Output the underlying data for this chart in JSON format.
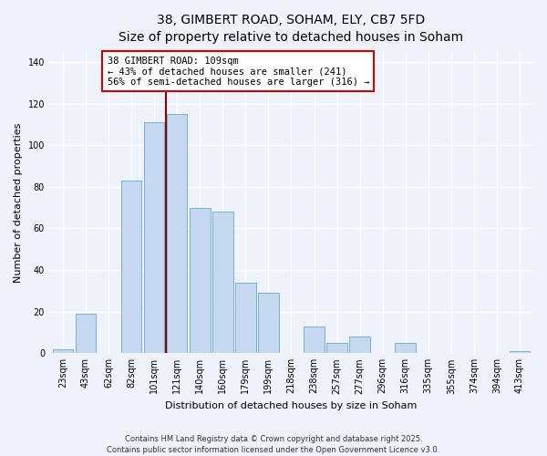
{
  "title_line1": "38, GIMBERT ROAD, SOHAM, ELY, CB7 5FD",
  "title_line2": "Size of property relative to detached houses in Soham",
  "xlabel": "Distribution of detached houses by size in Soham",
  "ylabel": "Number of detached properties",
  "categories": [
    "23sqm",
    "43sqm",
    "62sqm",
    "82sqm",
    "101sqm",
    "121sqm",
    "140sqm",
    "160sqm",
    "179sqm",
    "199sqm",
    "218sqm",
    "238sqm",
    "257sqm",
    "277sqm",
    "296sqm",
    "316sqm",
    "335sqm",
    "355sqm",
    "374sqm",
    "394sqm",
    "413sqm"
  ],
  "values": [
    2,
    19,
    0,
    83,
    111,
    115,
    70,
    68,
    34,
    29,
    0,
    13,
    5,
    8,
    0,
    5,
    0,
    0,
    0,
    0,
    1
  ],
  "bar_color": "#c5d8f0",
  "bar_edge_color": "#7aafd4",
  "marker_line_color": "#8b0000",
  "annotation_line1": "38 GIMBERT ROAD: 109sqm",
  "annotation_line2": "← 43% of detached houses are smaller (241)",
  "annotation_line3": "56% of semi-detached houses are larger (316) →",
  "annotation_box_facecolor": "#ffffff",
  "annotation_box_edgecolor": "#cc0000",
  "ylim": [
    0,
    145
  ],
  "yticks": [
    0,
    20,
    40,
    60,
    80,
    100,
    120,
    140
  ],
  "footer_line1": "Contains HM Land Registry data © Crown copyright and database right 2025.",
  "footer_line2": "Contains public sector information licensed under the Open Government Licence v3.0.",
  "background_color": "#eef2fb",
  "grid_color": "#ffffff",
  "title_fontsize": 10,
  "subtitle_fontsize": 9,
  "axis_label_fontsize": 8,
  "tick_fontsize": 7,
  "annotation_fontsize": 7.5,
  "footer_fontsize": 6
}
